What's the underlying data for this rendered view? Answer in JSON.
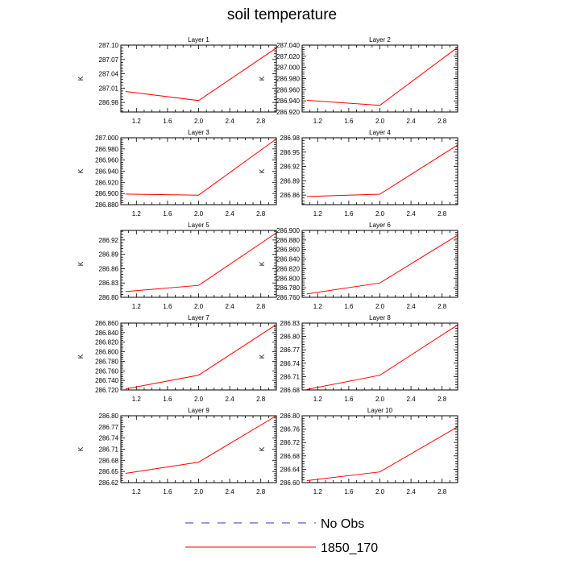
{
  "figure": {
    "title": "soil temperature"
  },
  "legend": {
    "entries": [
      {
        "label": "No Obs",
        "color": "#3333cc",
        "style": "dashed"
      },
      {
        "label": "1850_170",
        "color": "#ff0000",
        "style": "solid"
      }
    ]
  },
  "chart_data": [
    {
      "type": "line",
      "title": "Layer 1",
      "ylabel": "K",
      "xlabel": "",
      "xlim": [
        1.0,
        3.0
      ],
      "xticks": [
        1.2,
        1.6,
        2.0,
        2.4,
        2.8
      ],
      "xtick_labels": [
        "1.2",
        "1.6",
        "2.0",
        "2.4",
        "2.8"
      ],
      "ylim": [
        286.96,
        287.1
      ],
      "yticks": [
        286.98,
        287.01,
        287.04,
        287.07,
        287.1
      ],
      "ytick_labels": [
        "286.98",
        "287.01",
        "287.04",
        "287.07",
        "287.10"
      ],
      "series": [
        {
          "name": "1850_170",
          "color": "#ff0000",
          "x": [
            1.06,
            2.0,
            3.0
          ],
          "y": [
            287.003,
            286.984,
            287.094
          ]
        }
      ]
    },
    {
      "type": "line",
      "title": "Layer 2",
      "ylabel": "K",
      "xlabel": "",
      "xlim": [
        1.0,
        3.0
      ],
      "xticks": [
        1.2,
        1.6,
        2.0,
        2.4,
        2.8
      ],
      "xtick_labels": [
        "1.2",
        "1.6",
        "2.0",
        "2.4",
        "2.8"
      ],
      "ylim": [
        286.92,
        287.04
      ],
      "yticks": [
        286.92,
        286.94,
        286.96,
        286.98,
        287.0,
        287.02,
        287.04
      ],
      "ytick_labels": [
        "286.920",
        "286.940",
        "286.960",
        "286.980",
        "287.000",
        "287.020",
        "287.040"
      ],
      "series": [
        {
          "name": "1850_170",
          "color": "#ff0000",
          "x": [
            1.06,
            2.0,
            3.0
          ],
          "y": [
            286.941,
            286.932,
            287.036
          ]
        }
      ]
    },
    {
      "type": "line",
      "title": "Layer 3",
      "ylabel": "K",
      "xlabel": "",
      "xlim": [
        1.0,
        3.0
      ],
      "xticks": [
        1.2,
        1.6,
        2.0,
        2.4,
        2.8
      ],
      "xtick_labels": [
        "1.2",
        "1.6",
        "2.0",
        "2.4",
        "2.8"
      ],
      "ylim": [
        286.88,
        287.0
      ],
      "yticks": [
        286.88,
        286.9,
        286.92,
        286.94,
        286.96,
        286.98,
        287.0
      ],
      "ytick_labels": [
        "286.880",
        "286.900",
        "286.920",
        "286.940",
        "286.960",
        "286.980",
        "287.000"
      ],
      "series": [
        {
          "name": "1850_170",
          "color": "#ff0000",
          "x": [
            1.06,
            2.0,
            3.0
          ],
          "y": [
            286.899,
            286.897,
            286.998
          ]
        }
      ]
    },
    {
      "type": "line",
      "title": "Layer 4",
      "ylabel": "K",
      "xlabel": "",
      "xlim": [
        1.0,
        3.0
      ],
      "xticks": [
        1.2,
        1.6,
        2.0,
        2.4,
        2.8
      ],
      "xtick_labels": [
        "1.2",
        "1.6",
        "2.0",
        "2.4",
        "2.8"
      ],
      "ylim": [
        286.84,
        286.98
      ],
      "yticks": [
        286.86,
        286.89,
        286.92,
        286.95,
        286.98
      ],
      "ytick_labels": [
        "286.86",
        "286.89",
        "286.92",
        "286.95",
        "286.98"
      ],
      "series": [
        {
          "name": "1850_170",
          "color": "#ff0000",
          "x": [
            1.06,
            2.0,
            3.0
          ],
          "y": [
            286.857,
            286.862,
            286.965
          ]
        }
      ]
    },
    {
      "type": "line",
      "title": "Layer 5",
      "ylabel": "K",
      "xlabel": "",
      "xlim": [
        1.0,
        3.0
      ],
      "xticks": [
        1.2,
        1.6,
        2.0,
        2.4,
        2.8
      ],
      "xtick_labels": [
        "1.2",
        "1.6",
        "2.0",
        "2.4",
        "2.8"
      ],
      "ylim": [
        286.8,
        286.94
      ],
      "yticks": [
        286.8,
        286.83,
        286.86,
        286.89,
        286.92
      ],
      "ytick_labels": [
        "286.80",
        "286.83",
        "286.86",
        "286.89",
        "286.92"
      ],
      "series": [
        {
          "name": "1850_170",
          "color": "#ff0000",
          "x": [
            1.06,
            2.0,
            3.0
          ],
          "y": [
            286.812,
            286.825,
            286.935
          ]
        }
      ]
    },
    {
      "type": "line",
      "title": "Layer 6",
      "ylabel": "K",
      "xlabel": "",
      "xlim": [
        1.0,
        3.0
      ],
      "xticks": [
        1.2,
        1.6,
        2.0,
        2.4,
        2.8
      ],
      "xtick_labels": [
        "1.2",
        "1.6",
        "2.0",
        "2.4",
        "2.8"
      ],
      "ylim": [
        286.76,
        286.9
      ],
      "yticks": [
        286.76,
        286.78,
        286.8,
        286.82,
        286.84,
        286.86,
        286.88,
        286.9
      ],
      "ytick_labels": [
        "286.760",
        "286.780",
        "286.800",
        "286.820",
        "286.840",
        "286.860",
        "286.880",
        "286.900"
      ],
      "series": [
        {
          "name": "1850_170",
          "color": "#ff0000",
          "x": [
            1.06,
            2.0,
            3.0
          ],
          "y": [
            286.767,
            286.79,
            286.89
          ]
        }
      ]
    },
    {
      "type": "line",
      "title": "Layer 7",
      "ylabel": "K",
      "xlabel": "",
      "xlim": [
        1.0,
        3.0
      ],
      "xticks": [
        1.2,
        1.6,
        2.0,
        2.4,
        2.8
      ],
      "xtick_labels": [
        "1.2",
        "1.6",
        "2.0",
        "2.4",
        "2.8"
      ],
      "ylim": [
        286.72,
        286.86
      ],
      "yticks": [
        286.72,
        286.74,
        286.76,
        286.78,
        286.8,
        286.82,
        286.84,
        286.86
      ],
      "ytick_labels": [
        "286.720",
        "286.740",
        "286.760",
        "286.780",
        "286.800",
        "286.820",
        "286.840",
        "286.860"
      ],
      "series": [
        {
          "name": "1850_170",
          "color": "#ff0000",
          "x": [
            1.06,
            2.0,
            3.0
          ],
          "y": [
            286.722,
            286.751,
            286.857
          ]
        }
      ]
    },
    {
      "type": "line",
      "title": "Layer 8",
      "ylabel": "K",
      "xlabel": "",
      "xlim": [
        1.0,
        3.0
      ],
      "xticks": [
        1.2,
        1.6,
        2.0,
        2.4,
        2.8
      ],
      "xtick_labels": [
        "1.2",
        "1.6",
        "2.0",
        "2.4",
        "2.8"
      ],
      "ylim": [
        286.68,
        286.83
      ],
      "yticks": [
        286.68,
        286.71,
        286.74,
        286.77,
        286.8,
        286.83
      ],
      "ytick_labels": [
        "286.68",
        "286.71",
        "286.74",
        "286.77",
        "286.80",
        "286.83"
      ],
      "series": [
        {
          "name": "1850_170",
          "color": "#ff0000",
          "x": [
            1.06,
            2.0,
            3.0
          ],
          "y": [
            286.681,
            286.713,
            286.826
          ]
        }
      ]
    },
    {
      "type": "line",
      "title": "Layer 9",
      "ylabel": "K",
      "xlabel": "",
      "xlim": [
        1.0,
        3.0
      ],
      "xticks": [
        1.2,
        1.6,
        2.0,
        2.4,
        2.8
      ],
      "xtick_labels": [
        "1.2",
        "1.6",
        "2.0",
        "2.4",
        "2.8"
      ],
      "ylim": [
        286.62,
        286.8
      ],
      "yticks": [
        286.62,
        286.65,
        286.68,
        286.71,
        286.74,
        286.77,
        286.8
      ],
      "ytick_labels": [
        "286.62",
        "286.65",
        "286.68",
        "286.71",
        "286.74",
        "286.77",
        "286.80"
      ],
      "series": [
        {
          "name": "1850_170",
          "color": "#ff0000",
          "x": [
            1.06,
            2.0,
            3.0
          ],
          "y": [
            286.645,
            286.675,
            286.8
          ]
        }
      ]
    },
    {
      "type": "line",
      "title": "Layer 10",
      "ylabel": "K",
      "xlabel": "",
      "xlim": [
        1.0,
        3.0
      ],
      "xticks": [
        1.2,
        1.6,
        2.0,
        2.4,
        2.8
      ],
      "xtick_labels": [
        "1.2",
        "1.6",
        "2.0",
        "2.4",
        "2.8"
      ],
      "ylim": [
        286.6,
        286.8
      ],
      "yticks": [
        286.6,
        286.64,
        286.68,
        286.72,
        286.76,
        286.8
      ],
      "ytick_labels": [
        "286.60",
        "286.64",
        "286.68",
        "286.72",
        "286.76",
        "286.80"
      ],
      "series": [
        {
          "name": "1850_170",
          "color": "#ff0000",
          "x": [
            1.06,
            2.0,
            3.0
          ],
          "y": [
            286.606,
            286.632,
            286.767
          ]
        }
      ]
    }
  ]
}
